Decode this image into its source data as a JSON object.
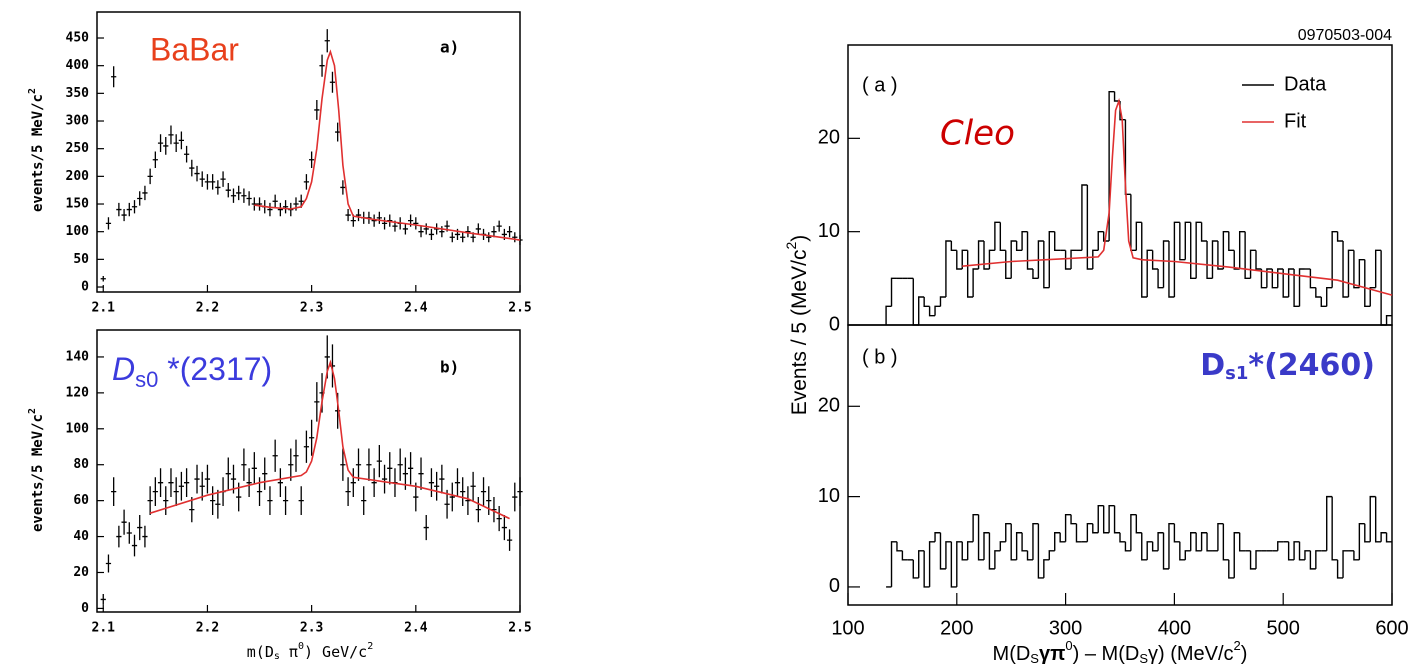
{
  "chart_data": [
    {
      "type": "scatter",
      "label": "a)",
      "annotation": "BaBar",
      "y_label": [
        "events/5 MeV/c",
        "2"
      ],
      "xlim": [
        2.094,
        2.5
      ],
      "xticks": [
        2.1,
        2.2,
        2.3,
        2.4,
        2.5
      ],
      "ylim": [
        -9,
        497
      ],
      "yticks": [
        0,
        50,
        100,
        150,
        200,
        250,
        300,
        350,
        400,
        450
      ],
      "x": [
        2.1,
        2.105,
        2.11,
        2.115,
        2.12,
        2.125,
        2.13,
        2.135,
        2.14,
        2.145,
        2.15,
        2.155,
        2.16,
        2.165,
        2.17,
        2.175,
        2.18,
        2.185,
        2.19,
        2.195,
        2.2,
        2.205,
        2.21,
        2.215,
        2.22,
        2.225,
        2.23,
        2.235,
        2.24,
        2.245,
        2.25,
        2.255,
        2.26,
        2.265,
        2.27,
        2.275,
        2.28,
        2.285,
        2.29,
        2.295,
        2.3,
        2.305,
        2.31,
        2.315,
        2.32,
        2.325,
        2.33,
        2.335,
        2.34,
        2.345,
        2.35,
        2.355,
        2.36,
        2.365,
        2.37,
        2.375,
        2.38,
        2.385,
        2.39,
        2.395,
        2.4,
        2.405,
        2.41,
        2.415,
        2.42,
        2.425,
        2.43,
        2.435,
        2.44,
        2.445,
        2.45,
        2.455,
        2.46,
        2.465,
        2.47,
        2.475,
        2.48,
        2.485,
        2.49,
        2.495,
        2.5
      ],
      "color": "#000000",
      "values": [
        15,
        115,
        380,
        140,
        130,
        140,
        145,
        160,
        170,
        200,
        230,
        260,
        255,
        275,
        260,
        265,
        240,
        215,
        205,
        195,
        190,
        190,
        180,
        195,
        175,
        165,
        170,
        165,
        160,
        150,
        150,
        145,
        140,
        155,
        140,
        145,
        140,
        150,
        155,
        190,
        230,
        320,
        400,
        445,
        370,
        280,
        180,
        130,
        120,
        130,
        125,
        125,
        120,
        125,
        115,
        120,
        110,
        115,
        105,
        120,
        115,
        100,
        105,
        95,
        105,
        100,
        110,
        90,
        95,
        90,
        100,
        90,
        105,
        95,
        90,
        100,
        110,
        95,
        100,
        90,
        85
      ],
      "errors": [
        5,
        11,
        19,
        12,
        11,
        12,
        12,
        13,
        13,
        14,
        15,
        16,
        16,
        17,
        16,
        16,
        15,
        15,
        14,
        14,
        14,
        14,
        13,
        14,
        13,
        13,
        13,
        13,
        13,
        12,
        12,
        12,
        12,
        12,
        12,
        12,
        12,
        12,
        12,
        14,
        15,
        18,
        20,
        21,
        19,
        17,
        13,
        11,
        11,
        11,
        11,
        11,
        11,
        11,
        11,
        11,
        10,
        11,
        10,
        11,
        11,
        10,
        10,
        10,
        10,
        10,
        10,
        9,
        10,
        9,
        10,
        9,
        10,
        10,
        9,
        10,
        10,
        10,
        10,
        9,
        9
      ],
      "fit": {
        "color": "#e03030",
        "x": [
          2.245,
          2.26,
          2.28,
          2.29,
          2.295,
          2.3,
          2.305,
          2.31,
          2.315,
          2.318,
          2.322,
          2.326,
          2.33,
          2.335,
          2.34,
          2.36,
          2.4,
          2.45,
          2.5
        ],
        "values": [
          148,
          144,
          141,
          145,
          160,
          190,
          250,
          340,
          410,
          425,
          400,
          320,
          220,
          150,
          128,
          122,
          112,
          98,
          85
        ]
      }
    },
    {
      "type": "scatter",
      "label": "b)",
      "annotation": [
        "D",
        "s0",
        " *(2317)"
      ],
      "y_label": [
        "events/5 MeV/c",
        "2"
      ],
      "x_label": [
        "m(D",
        "s",
        " π",
        "0",
        ") GeV/c",
        "2"
      ],
      "xlim": [
        2.094,
        2.5
      ],
      "xticks": [
        2.1,
        2.2,
        2.3,
        2.4,
        2.5
      ],
      "ylim": [
        -2,
        155
      ],
      "yticks": [
        0,
        20,
        40,
        60,
        80,
        100,
        120,
        140
      ],
      "x": [
        2.1,
        2.105,
        2.11,
        2.115,
        2.12,
        2.125,
        2.13,
        2.135,
        2.14,
        2.145,
        2.15,
        2.155,
        2.16,
        2.165,
        2.17,
        2.175,
        2.18,
        2.185,
        2.19,
        2.195,
        2.2,
        2.205,
        2.21,
        2.215,
        2.22,
        2.225,
        2.23,
        2.235,
        2.24,
        2.245,
        2.25,
        2.255,
        2.26,
        2.265,
        2.27,
        2.275,
        2.28,
        2.285,
        2.29,
        2.295,
        2.3,
        2.305,
        2.31,
        2.315,
        2.32,
        2.325,
        2.33,
        2.335,
        2.34,
        2.345,
        2.35,
        2.355,
        2.36,
        2.365,
        2.37,
        2.375,
        2.38,
        2.385,
        2.39,
        2.395,
        2.4,
        2.405,
        2.41,
        2.415,
        2.42,
        2.425,
        2.43,
        2.435,
        2.44,
        2.445,
        2.45,
        2.455,
        2.46,
        2.465,
        2.47,
        2.475,
        2.48,
        2.485,
        2.49,
        2.495,
        2.5
      ],
      "color": "#000000",
      "values": [
        5,
        25,
        65,
        40,
        48,
        42,
        35,
        45,
        40,
        60,
        65,
        70,
        60,
        70,
        65,
        68,
        70,
        55,
        72,
        68,
        72,
        60,
        58,
        65,
        75,
        72,
        62,
        80,
        70,
        78,
        65,
        75,
        60,
        85,
        70,
        60,
        80,
        85,
        60,
        90,
        95,
        115,
        120,
        140,
        135,
        110,
        80,
        65,
        70,
        80,
        60,
        80,
        70,
        82,
        72,
        78,
        70,
        80,
        75,
        78,
        62,
        75,
        45,
        70,
        68,
        72,
        58,
        62,
        70,
        65,
        60,
        68,
        55,
        65,
        60,
        55,
        50,
        45,
        38,
        62,
        65
      ],
      "errors": [
        3,
        5,
        8,
        6,
        7,
        6,
        6,
        7,
        6,
        8,
        8,
        8,
        8,
        8,
        8,
        8,
        8,
        7,
        8,
        8,
        8,
        8,
        8,
        8,
        9,
        8,
        8,
        9,
        8,
        9,
        8,
        9,
        8,
        9,
        8,
        8,
        9,
        9,
        8,
        9,
        10,
        11,
        11,
        12,
        12,
        10,
        9,
        8,
        8,
        9,
        8,
        9,
        8,
        9,
        8,
        9,
        8,
        9,
        9,
        9,
        8,
        9,
        7,
        8,
        8,
        8,
        8,
        8,
        8,
        8,
        8,
        8,
        7,
        8,
        8,
        7,
        7,
        7,
        6,
        8,
        8
      ],
      "fit": {
        "color": "#e03030",
        "x": [
          2.145,
          2.2,
          2.25,
          2.29,
          2.295,
          2.3,
          2.305,
          2.31,
          2.315,
          2.318,
          2.322,
          2.326,
          2.33,
          2.335,
          2.34,
          2.4,
          2.45,
          2.49
        ],
        "values": [
          53,
          63,
          70,
          74,
          76,
          82,
          95,
          115,
          132,
          137,
          128,
          110,
          90,
          77,
          73,
          68,
          61,
          50
        ]
      }
    },
    {
      "type": "histogram",
      "label": "( a )",
      "annotation": "Cleo",
      "note": "0970503-004",
      "y_label": [
        "Events / 5 (MeV/c",
        "2",
        ")"
      ],
      "xlim": [
        100,
        600
      ],
      "ylim": [
        0,
        30
      ],
      "yticks": [
        0,
        10,
        20
      ],
      "legend": "upper right",
      "bins": [
        135,
        140,
        145,
        150,
        155,
        160,
        165,
        170,
        175,
        180,
        185,
        190,
        195,
        200,
        205,
        210,
        215,
        220,
        225,
        230,
        235,
        240,
        245,
        250,
        255,
        260,
        265,
        270,
        275,
        280,
        285,
        290,
        295,
        300,
        305,
        310,
        315,
        320,
        325,
        330,
        335,
        340,
        345,
        350,
        355,
        360,
        365,
        370,
        375,
        380,
        385,
        390,
        395,
        400,
        405,
        410,
        415,
        420,
        425,
        430,
        435,
        440,
        445,
        450,
        455,
        460,
        465,
        470,
        475,
        480,
        485,
        490,
        495,
        500,
        505,
        510,
        515,
        520,
        525,
        530,
        535,
        540,
        545,
        550,
        555,
        560,
        565,
        570,
        575,
        580,
        585,
        590,
        595,
        600
      ],
      "series": [
        {
          "name": "Data",
          "color": "#000000",
          "values": [
            2,
            5,
            5,
            5,
            5,
            0,
            3,
            2,
            1,
            2,
            3,
            9,
            8,
            6,
            8,
            3,
            6,
            9,
            6,
            8,
            11,
            8,
            5,
            9,
            8,
            10,
            6,
            5,
            9,
            4,
            10,
            8,
            8,
            6,
            8,
            8,
            15,
            6,
            8,
            10,
            9,
            25,
            24,
            22,
            14,
            8,
            11,
            3,
            8,
            6,
            4,
            9,
            3,
            11,
            7,
            11,
            5,
            11,
            9,
            5,
            9,
            6,
            10,
            8,
            6,
            10,
            5,
            8,
            6,
            4,
            6,
            4,
            6,
            3,
            6,
            2,
            6,
            6,
            4,
            3,
            2,
            4,
            10,
            9,
            3,
            8,
            4,
            7,
            2,
            4,
            8,
            0,
            1
          ]
        },
        {
          "name": "Fit",
          "color": "#e03030",
          "x": [
            205,
            250,
            300,
            330,
            335,
            340,
            343,
            346,
            349,
            352,
            355,
            358,
            362,
            370,
            400,
            450,
            500,
            550,
            600
          ],
          "values": [
            6.3,
            6.8,
            7.1,
            7.3,
            8,
            12,
            18,
            23,
            24,
            22,
            15,
            9,
            7.2,
            7,
            6.8,
            6.2,
            5.5,
            4.8,
            3.2
          ]
        }
      ]
    },
    {
      "type": "histogram",
      "label": "( b )",
      "annotation": [
        "D",
        "s1",
        "*(2460)"
      ],
      "x_label": [
        "M(D",
        "S",
        "γπ",
        "0",
        ") – M(D",
        "S",
        "γ) (MeV/c",
        "2",
        ")"
      ],
      "xlim": [
        100,
        600
      ],
      "xticks": [
        100,
        200,
        300,
        400,
        500,
        600
      ],
      "ylim": [
        -2,
        29
      ],
      "yticks": [
        0,
        10,
        20
      ],
      "bins": [
        135,
        140,
        145,
        150,
        155,
        160,
        165,
        170,
        175,
        180,
        185,
        190,
        195,
        200,
        205,
        210,
        215,
        220,
        225,
        230,
        235,
        240,
        245,
        250,
        255,
        260,
        265,
        270,
        275,
        280,
        285,
        290,
        295,
        300,
        305,
        310,
        315,
        320,
        325,
        330,
        335,
        340,
        345,
        350,
        355,
        360,
        365,
        370,
        375,
        380,
        385,
        390,
        395,
        400,
        405,
        410,
        415,
        420,
        425,
        430,
        435,
        440,
        445,
        450,
        455,
        460,
        465,
        470,
        475,
        480,
        485,
        490,
        495,
        500,
        505,
        510,
        515,
        520,
        525,
        530,
        535,
        540,
        545,
        550,
        555,
        560,
        565,
        570,
        575,
        580,
        585,
        590,
        595,
        600
      ],
      "series": [
        {
          "color": "#000000",
          "values": [
            0,
            5,
            4,
            3,
            3,
            1,
            4,
            0,
            5,
            6,
            2,
            5,
            0,
            5,
            3,
            5,
            8,
            3,
            6,
            2,
            4,
            5,
            7,
            3,
            6,
            4,
            3,
            7,
            1,
            3,
            4,
            6,
            5,
            8,
            7,
            5,
            5,
            7,
            6,
            9,
            6,
            9,
            6,
            5,
            4,
            8,
            6,
            3,
            5,
            4,
            6,
            2,
            7,
            5,
            3,
            4,
            6,
            4,
            6,
            4,
            4,
            7,
            3,
            1,
            6,
            4,
            4,
            2,
            4,
            4,
            4,
            4,
            5,
            5,
            3,
            5,
            3,
            4,
            2,
            4,
            4,
            10,
            3,
            1,
            4,
            4,
            3,
            7,
            5,
            10,
            5,
            6,
            5
          ]
        }
      ]
    }
  ]
}
